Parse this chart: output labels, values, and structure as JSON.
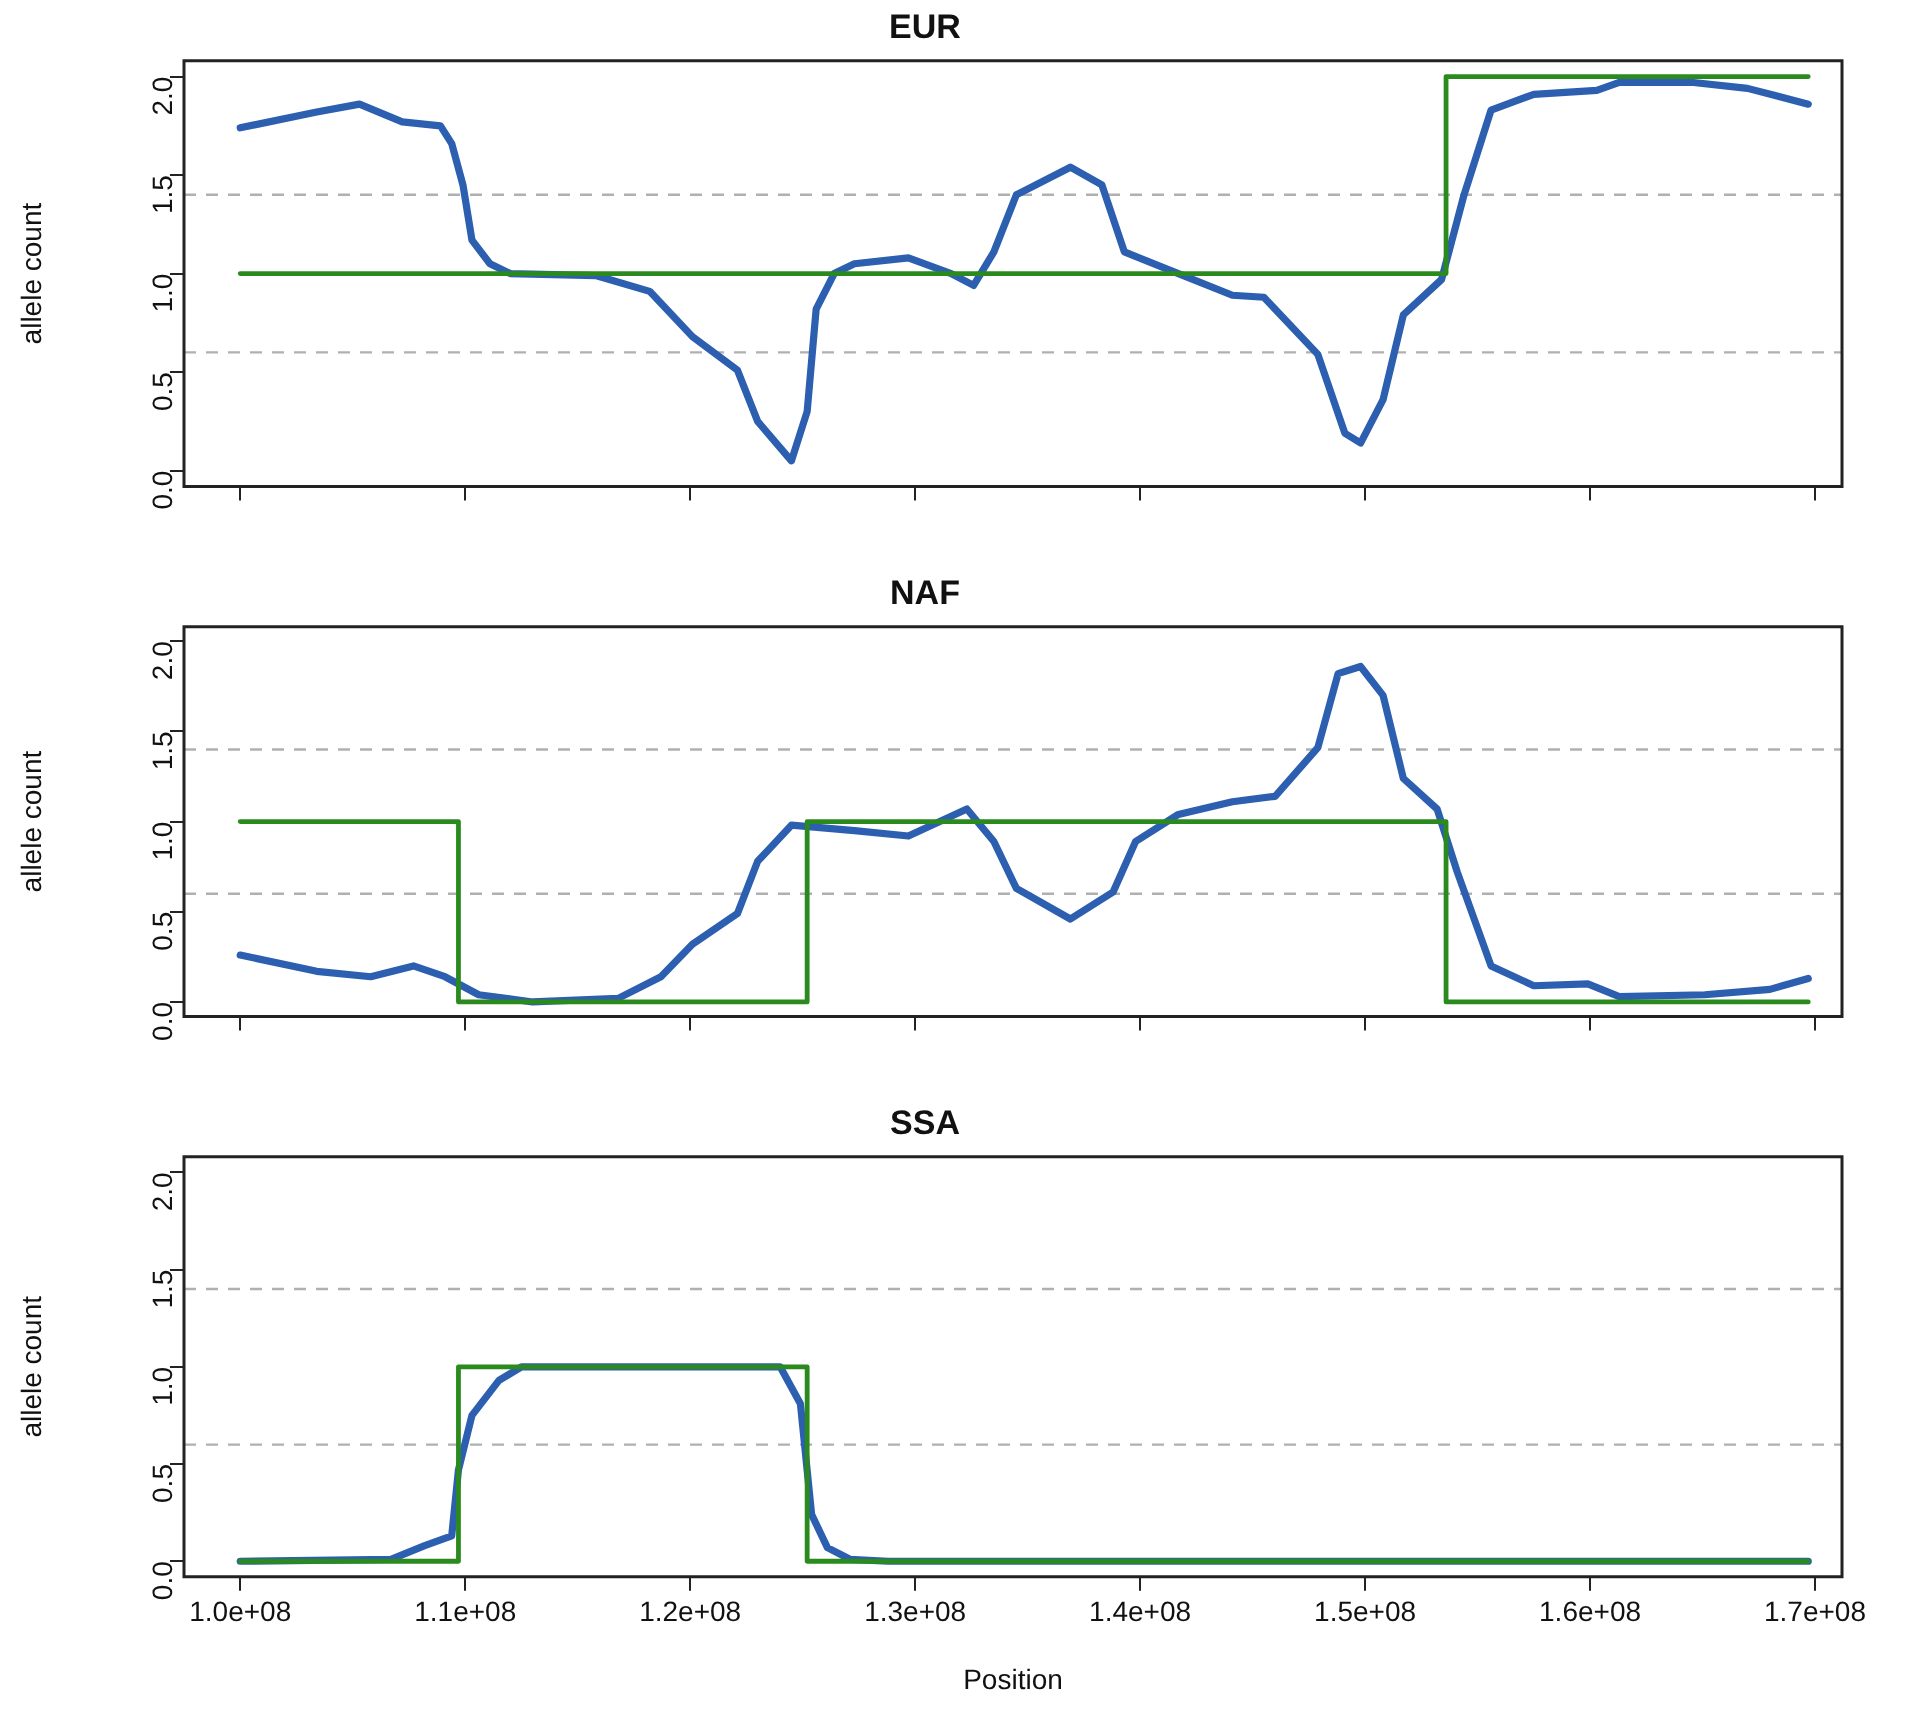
{
  "chart_data": [
    {
      "type": "line",
      "title": "EUR",
      "ylabel": "allele count",
      "xlim": [
        97500000.0,
        171200000.0
      ],
      "ylim": [
        -0.08,
        2.08
      ],
      "xticks": [
        {
          "value": 100000000.0,
          "label": null
        },
        {
          "value": 110000000.0,
          "label": null
        },
        {
          "value": 120000000.0,
          "label": null
        },
        {
          "value": 130000000.0,
          "label": null
        },
        {
          "value": 140000000.0,
          "label": null
        },
        {
          "value": 150000000.0,
          "label": null
        },
        {
          "value": 160000000.0,
          "label": null
        },
        {
          "value": 170000000.0,
          "label": null
        }
      ],
      "yticks": [
        {
          "value": 0,
          "label": "0.0"
        },
        {
          "value": 0.5,
          "label": "0.5"
        },
        {
          "value": 1,
          "label": "1.0"
        },
        {
          "value": 1.5,
          "label": "1.5"
        },
        {
          "value": 2,
          "label": "2.0"
        }
      ],
      "tick_labels": "y",
      "grid": false,
      "legend": false,
      "marker": "none",
      "ref_lines": [
        {
          "axis": "y",
          "value": 0.6,
          "label": null,
          "color": "#b0b0b0",
          "line_style": "dashed"
        },
        {
          "axis": "y",
          "value": 1.4,
          "label": null,
          "color": "#b0b0b0",
          "line_style": "dashed"
        }
      ],
      "series": [
        {
          "type": "line",
          "color": "#2d5fb0",
          "x": [
            100000000.0,
            103400000.0,
            105300000.0,
            107200000.0,
            108900000.0,
            109400000.0,
            109900000.0,
            110300000.0,
            111100000.0,
            112000000.0,
            115800000.0,
            118200000.0,
            120100000.0,
            122100000.0,
            123000000.0,
            124500000.0,
            125200000.0,
            125600000.0,
            126400000.0,
            127300000.0,
            129700000.0,
            131600000.0,
            132600000.0,
            133500000.0,
            134500000.0,
            136900000.0,
            138300000.0,
            139300000.0,
            141700000.0,
            144100000.0,
            145500000.0,
            147900000.0,
            149100000.0,
            149800000.0,
            150800000.0,
            151700000.0,
            153400000.0,
            154400000.0,
            155600000.0,
            157500000.0,
            160300000.0,
            161300000.0,
            164600000.0,
            167000000.0,
            169700000.0
          ],
          "values": [
            1.74,
            1.82,
            1.86,
            1.77,
            1.75,
            1.66,
            1.45,
            1.17,
            1.05,
            1.0,
            0.99,
            0.91,
            0.68,
            0.51,
            0.25,
            0.05,
            0.3,
            0.82,
            1.0,
            1.05,
            1.08,
            1.0,
            0.94,
            1.11,
            1.4,
            1.54,
            1.45,
            1.11,
            1.0,
            0.89,
            0.88,
            0.59,
            0.19,
            0.14,
            0.36,
            0.79,
            0.97,
            1.4,
            1.83,
            1.91,
            1.93,
            1.97,
            1.97,
            1.94,
            1.86
          ]
        },
        {
          "type": "step",
          "color": "#2a8a1e",
          "x": [
            100000000.0,
            153600000.0,
            169700000.0
          ],
          "values": [
            1,
            2,
            2
          ]
        }
      ]
    },
    {
      "type": "line",
      "title": "NAF",
      "ylabel": "allele count",
      "xlim": [
        97500000.0,
        171200000.0
      ],
      "ylim": [
        -0.08,
        2.08
      ],
      "xticks": [
        {
          "value": 100000000.0,
          "label": null
        },
        {
          "value": 110000000.0,
          "label": null
        },
        {
          "value": 120000000.0,
          "label": null
        },
        {
          "value": 130000000.0,
          "label": null
        },
        {
          "value": 140000000.0,
          "label": null
        },
        {
          "value": 150000000.0,
          "label": null
        },
        {
          "value": 160000000.0,
          "label": null
        },
        {
          "value": 170000000.0,
          "label": null
        }
      ],
      "yticks": [
        {
          "value": 0,
          "label": "0.0"
        },
        {
          "value": 0.5,
          "label": "0.5"
        },
        {
          "value": 1,
          "label": "1.0"
        },
        {
          "value": 1.5,
          "label": "1.5"
        },
        {
          "value": 2,
          "label": "2.0"
        }
      ],
      "tick_labels": "y",
      "grid": false,
      "legend": false,
      "marker": "none",
      "ref_lines": [
        {
          "axis": "y",
          "value": 0.6,
          "label": null,
          "color": "#b0b0b0",
          "line_style": "dashed"
        },
        {
          "axis": "y",
          "value": 1.4,
          "label": null,
          "color": "#b0b0b0",
          "line_style": "dashed"
        }
      ],
      "series": [
        {
          "type": "line",
          "color": "#2d5fb0",
          "x": [
            100000000.0,
            103400000.0,
            105800000.0,
            107700000.0,
            109100000.0,
            110600000.0,
            113000000.0,
            116800000.0,
            118700000.0,
            120100000.0,
            122100000.0,
            123000000.0,
            124500000.0,
            127300000.0,
            129700000.0,
            132300000.0,
            133500000.0,
            134500000.0,
            136900000.0,
            138800000.0,
            139800000.0,
            141700000.0,
            144100000.0,
            146000000.0,
            147900000.0,
            148800000.0,
            149800000.0,
            150800000.0,
            151700000.0,
            153200000.0,
            154100000.0,
            155600000.0,
            157500000.0,
            159900000.0,
            161300000.0,
            165100000.0,
            168000000.0,
            169700000.0
          ],
          "values": [
            0.26,
            0.17,
            0.14,
            0.2,
            0.14,
            0.04,
            0.0,
            0.02,
            0.14,
            0.32,
            0.49,
            0.78,
            0.98,
            0.95,
            0.92,
            1.07,
            0.89,
            0.63,
            0.46,
            0.61,
            0.89,
            1.04,
            1.11,
            1.14,
            1.41,
            1.82,
            1.86,
            1.7,
            1.24,
            1.07,
            0.72,
            0.2,
            0.09,
            0.1,
            0.03,
            0.04,
            0.07,
            0.13
          ]
        },
        {
          "type": "step",
          "color": "#2a8a1e",
          "x": [
            100000000.0,
            109700000.0,
            125200000.0,
            153600000.0,
            169700000.0
          ],
          "values": [
            1,
            0,
            1,
            0,
            0
          ]
        }
      ]
    },
    {
      "type": "line",
      "title": "SSA",
      "ylabel": "allele count",
      "xlabel": "Position",
      "xlim": [
        97500000.0,
        171200000.0
      ],
      "ylim": [
        -0.08,
        2.08
      ],
      "xticks": [
        {
          "value": 100000000.0,
          "label": "1.0e+08"
        },
        {
          "value": 110000000.0,
          "label": "1.1e+08"
        },
        {
          "value": 120000000.0,
          "label": "1.2e+08"
        },
        {
          "value": 130000000.0,
          "label": "1.3e+08"
        },
        {
          "value": 140000000.0,
          "label": "1.4e+08"
        },
        {
          "value": 150000000.0,
          "label": "1.5e+08"
        },
        {
          "value": 160000000.0,
          "label": "1.6e+08"
        },
        {
          "value": 170000000.0,
          "label": "1.7e+08"
        }
      ],
      "yticks": [
        {
          "value": 0,
          "label": "0.0"
        },
        {
          "value": 0.5,
          "label": "0.5"
        },
        {
          "value": 1,
          "label": "1.0"
        },
        {
          "value": 1.5,
          "label": "1.5"
        },
        {
          "value": 2,
          "label": "2.0"
        }
      ],
      "grid": false,
      "legend": false,
      "marker": "none",
      "ref_lines": [
        {
          "axis": "y",
          "value": 0.6,
          "label": null,
          "color": "#b0b0b0",
          "line_style": "dashed"
        },
        {
          "axis": "y",
          "value": 1.4,
          "label": null,
          "color": "#b0b0b0",
          "line_style": "dashed"
        }
      ],
      "series": [
        {
          "type": "line",
          "color": "#2d5fb0",
          "x": [
            100000000.0,
            106700000.0,
            108200000.0,
            109400000.0,
            109700000.0,
            110300000.0,
            111500000.0,
            112500000.0,
            124000000.0,
            124900000.0,
            125400000.0,
            126100000.0,
            127100000.0,
            128800000.0,
            169700000.0
          ],
          "values": [
            0,
            0.01,
            0.08,
            0.13,
            0.47,
            0.75,
            0.93,
            1.0,
            1.0,
            0.81,
            0.24,
            0.07,
            0.01,
            0,
            0
          ]
        },
        {
          "type": "step",
          "color": "#2a8a1e",
          "x": [
            100000000.0,
            109700000.0,
            125200000.0,
            169700000.0
          ],
          "values": [
            0,
            1,
            0,
            0
          ]
        }
      ]
    }
  ]
}
